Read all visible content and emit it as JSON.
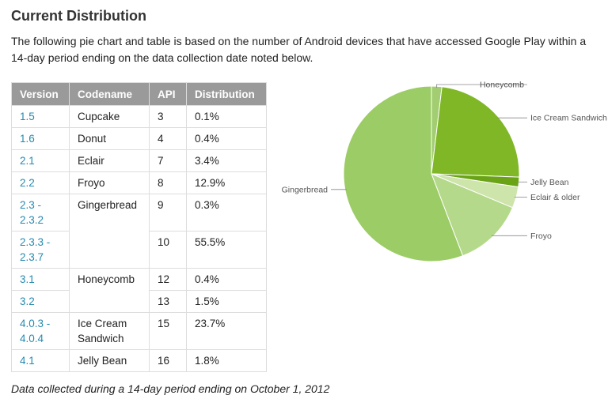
{
  "page": {
    "title": "Current Distribution",
    "intro": "The following pie chart and table is based on the number of Android devices that have accessed Google Play within a 14-day period ending on the data collection date noted below.",
    "footer": "Data collected during a 14-day period ending on October 1, 2012"
  },
  "table": {
    "headers": [
      "Version",
      "Codename",
      "API",
      "Distribution"
    ],
    "groups": [
      {
        "codename": "Cupcake",
        "rows": [
          {
            "version": "1.5",
            "api": "3",
            "dist": "0.1%"
          }
        ]
      },
      {
        "codename": "Donut",
        "rows": [
          {
            "version": "1.6",
            "api": "4",
            "dist": "0.4%"
          }
        ]
      },
      {
        "codename": "Eclair",
        "rows": [
          {
            "version": "2.1",
            "api": "7",
            "dist": "3.4%"
          }
        ]
      },
      {
        "codename": "Froyo",
        "rows": [
          {
            "version": "2.2",
            "api": "8",
            "dist": "12.9%"
          }
        ]
      },
      {
        "codename": "Gingerbread",
        "rows": [
          {
            "version": "2.3 - 2.3.2",
            "api": "9",
            "dist": "0.3%"
          },
          {
            "version": "2.3.3 - 2.3.7",
            "api": "10",
            "dist": "55.5%"
          }
        ]
      },
      {
        "codename": "Honeycomb",
        "rows": [
          {
            "version": "3.1",
            "api": "12",
            "dist": "0.4%"
          },
          {
            "version": "3.2",
            "api": "13",
            "dist": "1.5%"
          }
        ]
      },
      {
        "codename": "Ice Cream Sandwich",
        "rows": [
          {
            "version": "4.0.3 - 4.0.4",
            "api": "15",
            "dist": "23.7%"
          }
        ]
      },
      {
        "codename": "Jelly Bean",
        "rows": [
          {
            "version": "4.1",
            "api": "16",
            "dist": "1.8%"
          }
        ]
      }
    ]
  },
  "chart_data": {
    "type": "pie",
    "title": "",
    "slices": [
      {
        "label": "Honeycomb",
        "value": 1.9,
        "color": "#a2cd70"
      },
      {
        "label": "Ice Cream Sandwich",
        "value": 23.7,
        "color": "#7fb727"
      },
      {
        "label": "Jelly Bean",
        "value": 1.8,
        "color": "#6aa416"
      },
      {
        "label": "Eclair & older",
        "value": 3.9,
        "color": "#cde4ab"
      },
      {
        "label": "Froyo",
        "value": 12.9,
        "color": "#b5d98a"
      },
      {
        "label": "Gingerbread",
        "value": 55.8,
        "color": "#9ccc65"
      }
    ]
  }
}
